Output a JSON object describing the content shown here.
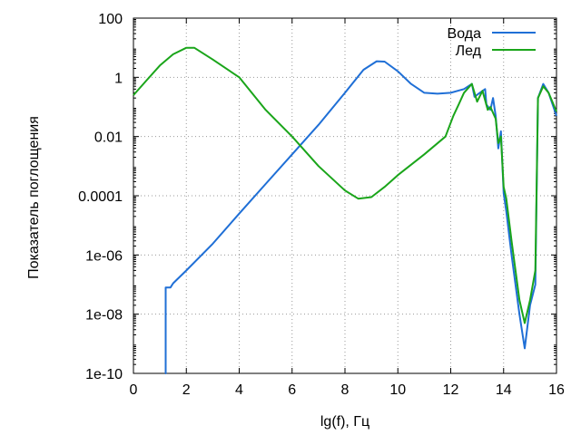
{
  "chart_data": {
    "type": "line",
    "xlabel": "lg(f), Гц",
    "ylabel": "Показатель поглощения",
    "x_scale": "linear",
    "y_scale": "log",
    "xlim": [
      0,
      16
    ],
    "ylim": [
      1e-10,
      100
    ],
    "grid": true,
    "legend_position": "top-right",
    "x_ticks": [
      "0",
      "2",
      "4",
      "6",
      "8",
      "10",
      "12",
      "14",
      "16"
    ],
    "y_ticks": [
      "1e-10",
      "1e-08",
      "1e-06",
      "0.0001",
      "0.01",
      "1",
      "100"
    ],
    "series": [
      {
        "name": "Вода",
        "color": "#1f6fd6",
        "points": [
          [
            1.2,
            1e-10
          ],
          [
            1.22,
            1e-10
          ],
          [
            1.22,
            8e-08
          ],
          [
            1.4,
            8e-08
          ],
          [
            1.5,
            1.1e-07
          ],
          [
            2,
            3e-07
          ],
          [
            3,
            2.4e-06
          ],
          [
            4,
            2.5e-05
          ],
          [
            5,
            0.00025
          ],
          [
            6,
            0.0025
          ],
          [
            7,
            0.025
          ],
          [
            8,
            0.3
          ],
          [
            8.7,
            1.8
          ],
          [
            9.2,
            3.5
          ],
          [
            9.5,
            3.4
          ],
          [
            10,
            1.6
          ],
          [
            10.5,
            0.6
          ],
          [
            11,
            0.3
          ],
          [
            11.5,
            0.28
          ],
          [
            12,
            0.3
          ],
          [
            12.5,
            0.4
          ],
          [
            12.8,
            0.6
          ],
          [
            12.9,
            0.22
          ],
          [
            13.1,
            0.3
          ],
          [
            13.3,
            0.4
          ],
          [
            13.35,
            0.12
          ],
          [
            13.5,
            0.08
          ],
          [
            13.6,
            0.2
          ],
          [
            13.7,
            0.05
          ],
          [
            13.8,
            0.004
          ],
          [
            13.9,
            0.015
          ],
          [
            14.0,
            0.00012
          ],
          [
            14.1,
            3e-05
          ],
          [
            14.3,
            1e-06
          ],
          [
            14.6,
            1e-08
          ],
          [
            14.8,
            7e-10
          ],
          [
            15.0,
            2e-08
          ],
          [
            15.2,
            1e-07
          ],
          [
            15.3,
            0.2
          ],
          [
            15.5,
            0.6
          ],
          [
            15.7,
            0.3
          ],
          [
            16,
            0.05
          ]
        ]
      },
      {
        "name": "Лед",
        "color": "#1aa51a",
        "points": [
          [
            0,
            0.25
          ],
          [
            0.5,
            0.8
          ],
          [
            1,
            2.5
          ],
          [
            1.5,
            6
          ],
          [
            2,
            10
          ],
          [
            2.3,
            10
          ],
          [
            3,
            4
          ],
          [
            4,
            1
          ],
          [
            5,
            0.08
          ],
          [
            6,
            0.01
          ],
          [
            7,
            0.001
          ],
          [
            8,
            0.00015
          ],
          [
            8.5,
            8e-05
          ],
          [
            9,
            9e-05
          ],
          [
            9.5,
            0.0002
          ],
          [
            10,
            0.0005
          ],
          [
            11,
            0.0025
          ],
          [
            11.8,
            0.01
          ],
          [
            12.1,
            0.05
          ],
          [
            12.3,
            0.12
          ],
          [
            12.5,
            0.3
          ],
          [
            12.8,
            0.6
          ],
          [
            13.0,
            0.15
          ],
          [
            13.2,
            0.35
          ],
          [
            13.4,
            0.08
          ],
          [
            13.5,
            0.1
          ],
          [
            13.7,
            0.04
          ],
          [
            13.8,
            0.006
          ],
          [
            13.9,
            0.01
          ],
          [
            14.0,
            0.0002
          ],
          [
            14.1,
            8e-05
          ],
          [
            14.3,
            3e-06
          ],
          [
            14.6,
            3e-08
          ],
          [
            14.8,
            5e-09
          ],
          [
            15.0,
            3e-08
          ],
          [
            15.2,
            3e-07
          ],
          [
            15.3,
            0.2
          ],
          [
            15.5,
            0.5
          ],
          [
            15.7,
            0.3
          ],
          [
            16,
            0.07
          ]
        ]
      }
    ]
  }
}
